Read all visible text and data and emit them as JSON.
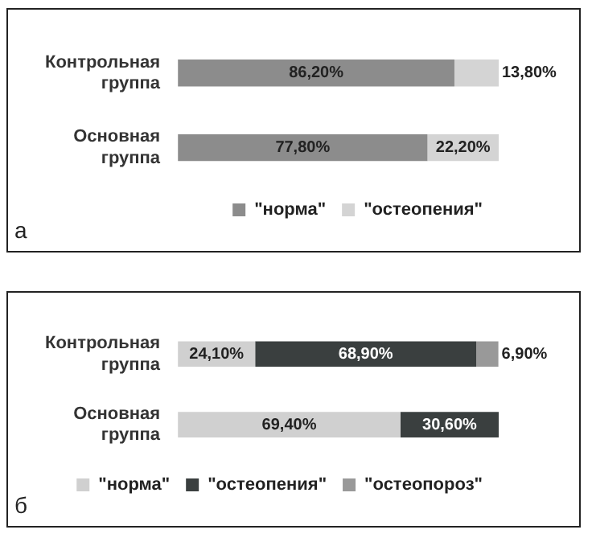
{
  "chart_data": [
    {
      "type": "bar",
      "orientation": "horizontal",
      "stacked": true,
      "categories": [
        "Контрольная группа",
        "Основная группа"
      ],
      "xlim": [
        0,
        100
      ],
      "tick_labels": "y",
      "legend": "bottom",
      "annotations": [
        "а"
      ],
      "series": [
        {
          "name": "\"норма\"",
          "color": "#8c8c8c",
          "values": [
            86.2,
            77.8
          ],
          "value_labels": [
            "86,20%",
            "77,80%"
          ]
        },
        {
          "name": "\"остеопения\"",
          "color": "#d4d4d4",
          "values": [
            13.8,
            22.2
          ],
          "value_labels": [
            "13,80%",
            "22,20%"
          ]
        }
      ]
    },
    {
      "type": "bar",
      "orientation": "horizontal",
      "stacked": true,
      "categories": [
        "Контрольная группа",
        "Основная группа"
      ],
      "xlim": [
        0,
        100
      ],
      "tick_labels": "y",
      "legend": "bottom",
      "annotations": [
        "б"
      ],
      "series": [
        {
          "name": "\"норма\"",
          "color": "#d0d0d0",
          "values": [
            24.1,
            69.4
          ],
          "value_labels": [
            "24,10%",
            "69,40%"
          ]
        },
        {
          "name": "\"остеопения\"",
          "color": "#3a3f3f",
          "values": [
            68.9,
            30.6
          ],
          "value_labels": [
            "68,90%",
            "30,60%"
          ]
        },
        {
          "name": "\"остеопороз\"",
          "color": "#999999",
          "values": [
            6.9,
            null
          ],
          "value_labels": [
            "6,90%",
            null
          ]
        }
      ]
    }
  ]
}
